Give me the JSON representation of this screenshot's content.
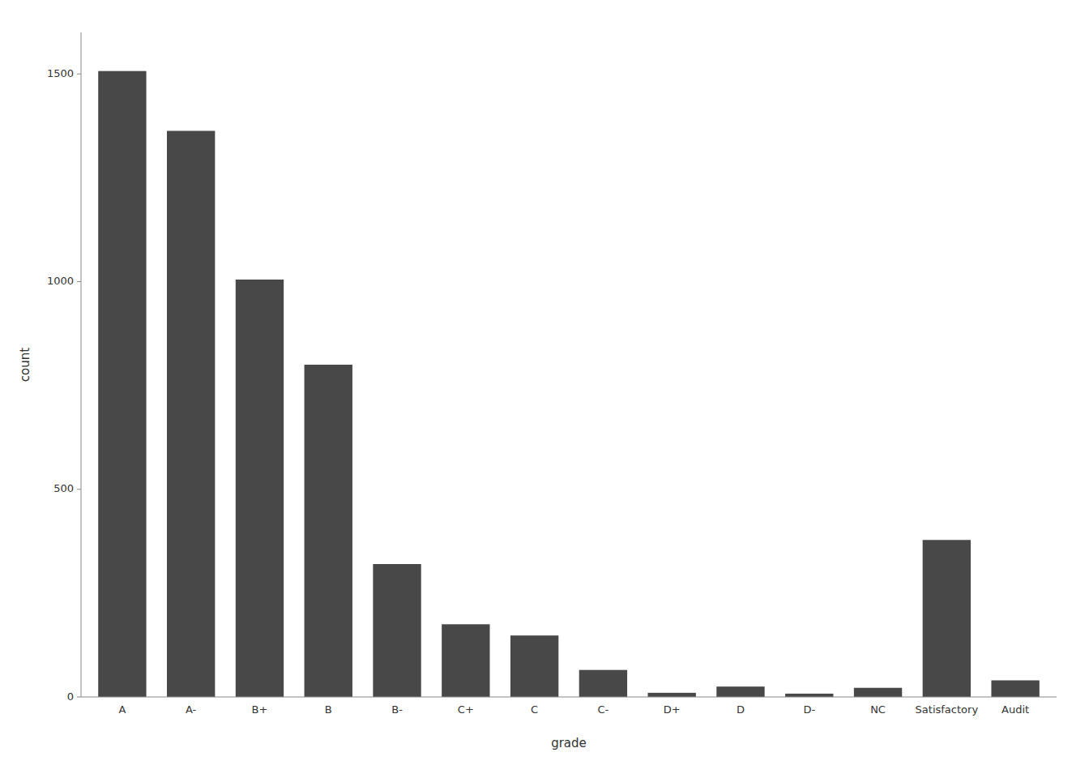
{
  "chart_data": {
    "type": "bar",
    "categories": [
      "A",
      "A-",
      "B+",
      "B",
      "B-",
      "C+",
      "C",
      "C-",
      "D+",
      "D",
      "D-",
      "NC",
      "Satisfactory",
      "Audit"
    ],
    "values": [
      1507,
      1363,
      1005,
      800,
      320,
      175,
      148,
      65,
      10,
      25,
      8,
      22,
      378,
      40
    ],
    "color": "#484848",
    "xlabel": "grade",
    "ylabel": "count",
    "ylim": [
      0,
      1600
    ],
    "yticks": [
      0,
      500,
      1000,
      1500
    ],
    "grid": false
  }
}
